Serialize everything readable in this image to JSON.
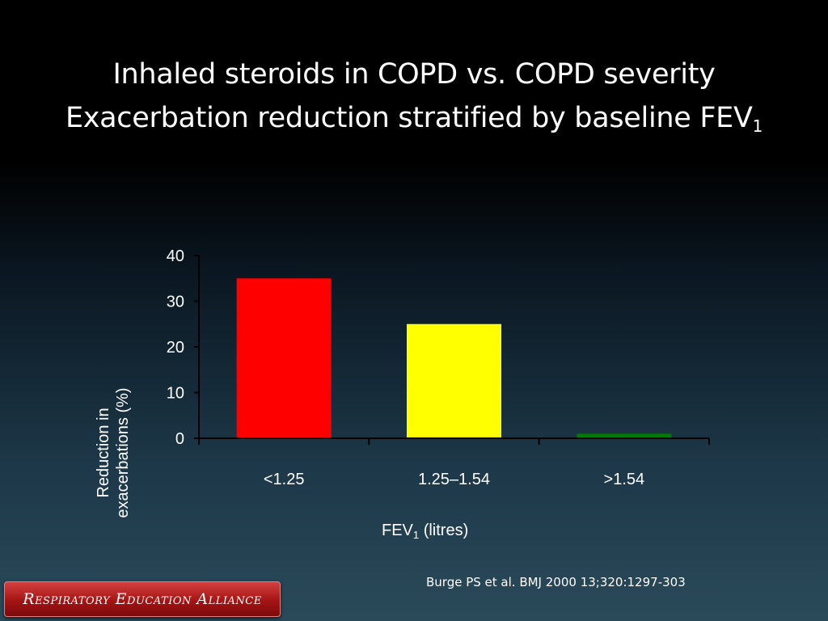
{
  "slide": {
    "title_line1": "Inhaled steroids in COPD vs. COPD severity",
    "title_line2_main": "Exacerbation reduction stratified by baseline FEV",
    "title_line2_sub": "1",
    "citation": "Burge PS et al. BMJ 2000 13;320:1297-303",
    "logo_text": "Respiratory Education Alliance"
  },
  "chart_data": {
    "type": "bar",
    "categories": [
      "<1.25",
      "1.25–1.54",
      ">1.54"
    ],
    "values": [
      35,
      25,
      1
    ],
    "colors": [
      "#ff0000",
      "#ffff00",
      "#007a00"
    ],
    "ylabel_line1": "Reduction in",
    "ylabel_line2": "exacerbations (%)",
    "xlabel_main": "FEV",
    "xlabel_sub": "1",
    "xlabel_units": " (litres)",
    "ylim": [
      0,
      40
    ],
    "yticks": [
      0,
      10,
      20,
      30,
      40
    ],
    "grid": false,
    "legend": "none"
  }
}
